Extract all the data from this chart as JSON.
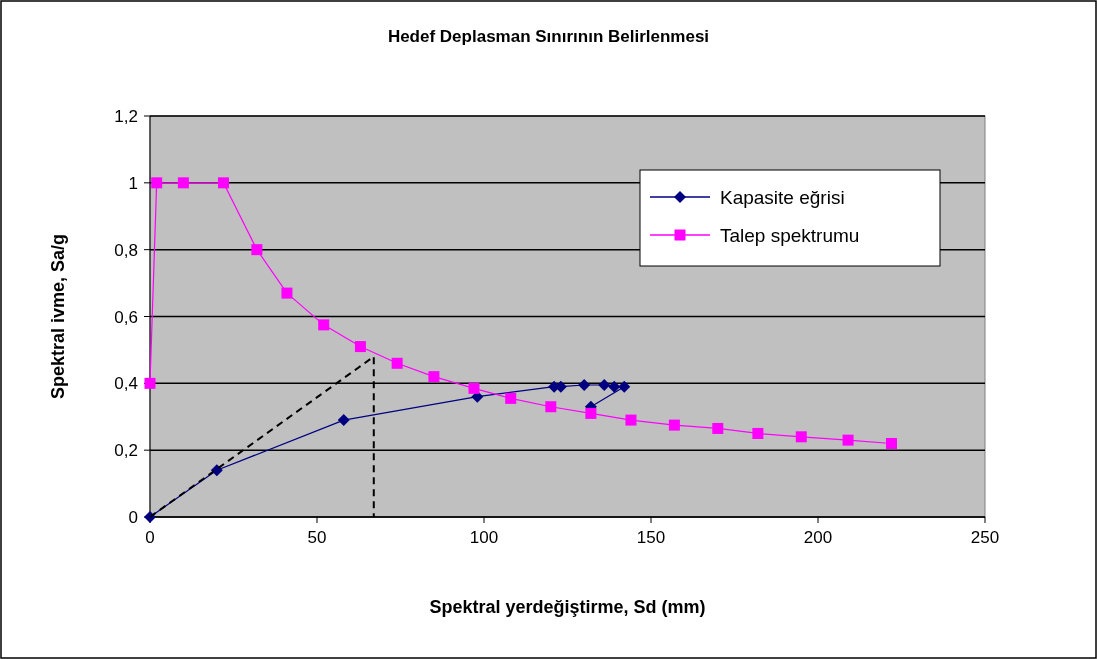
{
  "chart_data": {
    "type": "line",
    "title": "Hedef Deplasman Sınırının Belirlenmesi",
    "xlabel": "Spektral yerdeğiştirme, Sd (mm)",
    "ylabel": "Spektral ivme, Sa/g",
    "xlim": [
      0,
      250
    ],
    "xticks": [
      0,
      50,
      100,
      150,
      200,
      250
    ],
    "ylim": [
      0,
      1.2
    ],
    "yticks": [
      {
        "value": 0,
        "label": "0"
      },
      {
        "value": 0.2,
        "label": "0,2"
      },
      {
        "value": 0.4,
        "label": "0,4"
      },
      {
        "value": 0.6,
        "label": "0,6"
      },
      {
        "value": 0.8,
        "label": "0,8"
      },
      {
        "value": 1,
        "label": "1"
      },
      {
        "value": 1.2,
        "label": "1,2"
      }
    ],
    "grid": "y",
    "legend": "top right",
    "series": [
      {
        "name": "Kapasite eğrisi",
        "color": "#000080",
        "marker": "diamond",
        "x": [
          0,
          20,
          58,
          98,
          121,
          123,
          130,
          136,
          139,
          142,
          132
        ],
        "values": [
          0,
          0.14,
          0.29,
          0.36,
          0.39,
          0.39,
          0.395,
          0.395,
          0.39,
          0.39,
          0.33
        ]
      },
      {
        "name": "Talep spektrumu",
        "color": "#ff00ff",
        "marker": "square",
        "x": [
          0,
          2,
          10,
          22,
          32,
          41,
          52,
          63,
          74,
          85,
          97,
          108,
          120,
          132,
          144,
          157,
          170,
          182,
          195,
          209,
          222
        ],
        "values": [
          0.4,
          1,
          1,
          1,
          0.8,
          0.67,
          0.575,
          0.51,
          0.46,
          0.42,
          0.385,
          0.355,
          0.33,
          0.31,
          0.29,
          0.275,
          0.265,
          0.25,
          0.24,
          0.23,
          0.22
        ]
      },
      {
        "color": "#000000",
        "marker": "none",
        "line_style": "dashed",
        "x": [
          0,
          67,
          67
        ],
        "values": [
          0,
          0.48,
          0
        ]
      }
    ]
  }
}
